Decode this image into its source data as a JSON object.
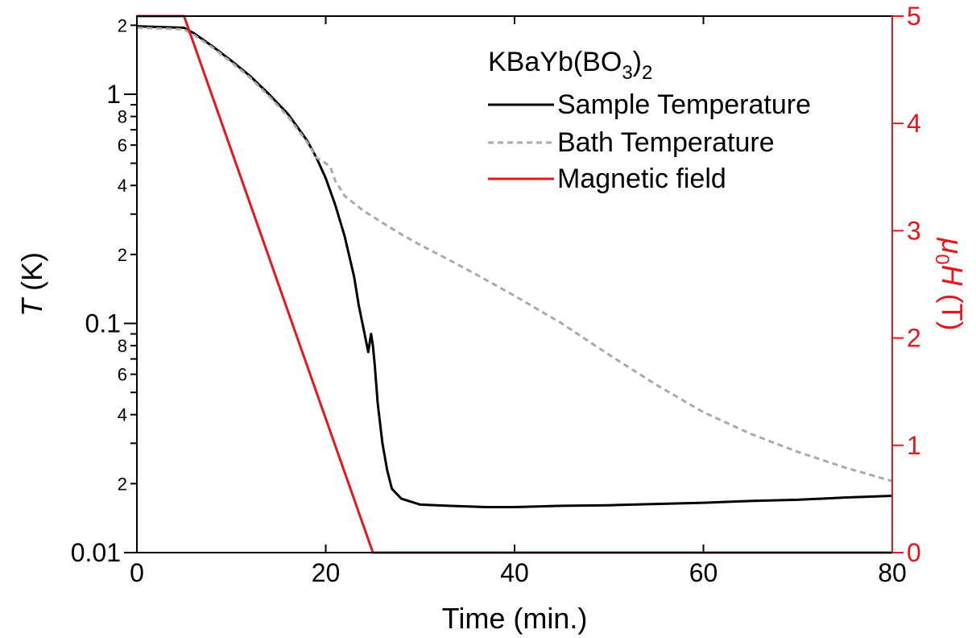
{
  "chart_data": {
    "type": "line",
    "xlabel": "Time (min.)",
    "ylabel_left": {
      "italic": "T",
      "rest": " (K)"
    },
    "ylabel_right": {
      "italic": "μ",
      "sub": "0",
      "italic2": "H",
      "rest": " (T)"
    },
    "xlim": [
      0,
      80
    ],
    "ylim_left": [
      0.01,
      2.5
    ],
    "yscale_left": "log",
    "ylim_right": [
      0,
      5
    ],
    "x_ticks": [
      0,
      20,
      40,
      60,
      80
    ],
    "x_tick_labels": [
      "0",
      "20",
      "40",
      "60",
      "80"
    ],
    "y_left_major_ticks": [
      0.01,
      0.1,
      1
    ],
    "y_left_major_labels": [
      "0.01",
      "0.1",
      "1"
    ],
    "y_left_minor_labeled": [
      {
        "value": 0.02,
        "label": "2"
      },
      {
        "value": 0.04,
        "label": "4"
      },
      {
        "value": 0.06,
        "label": "6"
      },
      {
        "value": 0.08,
        "label": "8"
      },
      {
        "value": 0.2,
        "label": "2"
      },
      {
        "value": 0.4,
        "label": "4"
      },
      {
        "value": 0.6,
        "label": "6"
      },
      {
        "value": 0.8,
        "label": "8"
      },
      {
        "value": 2,
        "label": "2"
      }
    ],
    "y_left_minor_unlabeled": [
      0.03,
      0.05,
      0.07,
      0.09,
      0.3,
      0.5,
      0.7,
      0.9
    ],
    "y_right_ticks": [
      0,
      1,
      2,
      3,
      4,
      5
    ],
    "y_right_tick_labels": [
      "0",
      "1",
      "2",
      "3",
      "4",
      "5"
    ],
    "legend_title": {
      "text": "KBaYb(BO",
      "sub": "3",
      "close": ")",
      "sub2": "2"
    },
    "legend_position": "top-right",
    "series": [
      {
        "name": "Sample Temperature",
        "axis": "left",
        "color": "#000000",
        "style": "solid",
        "x": [
          0,
          5,
          6,
          8,
          10,
          12,
          14,
          16,
          18,
          19,
          20,
          21,
          22,
          23,
          23.5,
          24,
          24.5,
          24.8,
          25.0,
          25.2,
          25.5,
          26,
          26.5,
          27,
          28,
          30,
          33,
          37,
          40,
          45,
          50,
          55,
          60,
          65,
          70,
          75,
          80
        ],
        "y": [
          1.98,
          1.95,
          1.85,
          1.62,
          1.4,
          1.2,
          1.0,
          0.82,
          0.63,
          0.53,
          0.43,
          0.33,
          0.24,
          0.16,
          0.12,
          0.095,
          0.075,
          0.09,
          0.08,
          0.065,
          0.045,
          0.03,
          0.023,
          0.019,
          0.0172,
          0.0162,
          0.016,
          0.0158,
          0.0158,
          0.016,
          0.0161,
          0.0163,
          0.0165,
          0.0168,
          0.017,
          0.0174,
          0.0177
        ]
      },
      {
        "name": "Bath Temperature",
        "axis": "left",
        "color": "#aaaaaa",
        "style": "dashed",
        "x": [
          0,
          5,
          6,
          8,
          10,
          12,
          14,
          16,
          18,
          19,
          20,
          20.5,
          21,
          22,
          24,
          26,
          28,
          30,
          33,
          36,
          40,
          45,
          50,
          55,
          60,
          65,
          70,
          75,
          80
        ],
        "y": [
          1.95,
          1.92,
          1.82,
          1.6,
          1.38,
          1.18,
          0.98,
          0.8,
          0.62,
          0.53,
          0.5,
          0.48,
          0.42,
          0.36,
          0.31,
          0.275,
          0.245,
          0.22,
          0.19,
          0.163,
          0.132,
          0.1,
          0.073,
          0.054,
          0.041,
          0.033,
          0.0275,
          0.0235,
          0.0205
        ]
      },
      {
        "name": "Magnetic field",
        "axis": "right",
        "color": "#e8161b",
        "style": "solid",
        "x": [
          0,
          5,
          25,
          80
        ],
        "y": [
          5,
          5,
          0,
          0
        ]
      }
    ]
  },
  "colors": {
    "sample": "#000000",
    "bath": "#aaaaaa",
    "field": "#e8161b",
    "axis_left": "#000000",
    "axis_right": "#e8161b"
  }
}
